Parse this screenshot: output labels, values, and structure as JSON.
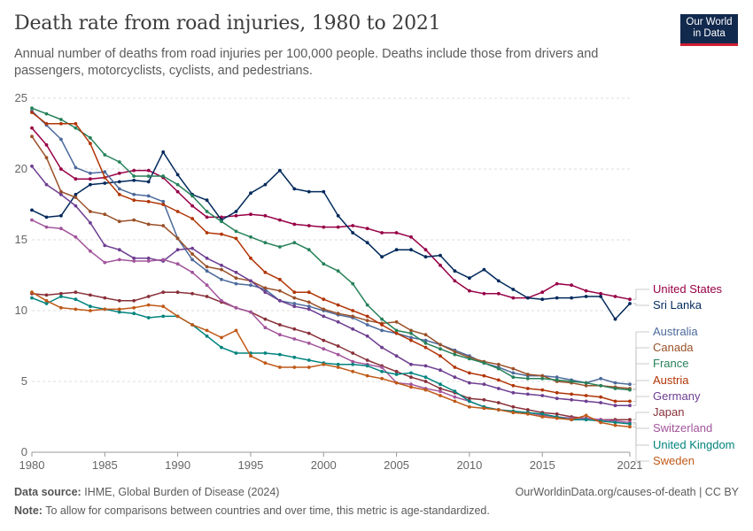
{
  "title": "Death rate from road injuries, 1980 to 2021",
  "subtitle": "Annual number of deaths from road injuries per 100,000 people. Deaths include those from drivers and passengers, motorcyclists, cyclists, and pedestrians.",
  "logo": {
    "line1": "Our World",
    "line2": "in Data"
  },
  "footer": {
    "source_label": "Data source:",
    "source_text": "IHME, Global Burden of Disease (2024)",
    "url": "OurWorldinData.org/causes-of-death | CC BY",
    "note_label": "Note:",
    "note_text": "To allow for comparisons between countries and over time, this metric is age-standardized."
  },
  "chart_data": {
    "type": "line",
    "title": "Death rate from road injuries, 1980 to 2021",
    "xlabel": "",
    "ylabel": "",
    "xlim": [
      1980,
      2021
    ],
    "ylim": [
      0,
      25
    ],
    "x_ticks": [
      "1980",
      "1985",
      "1990",
      "1995",
      "2000",
      "2005",
      "2010",
      "2015",
      "2021"
    ],
    "y_ticks": [
      "0",
      "5",
      "10",
      "15",
      "20",
      "25"
    ],
    "grid": "horizontal",
    "legend": "right",
    "x": [
      1980,
      1981,
      1982,
      1983,
      1984,
      1985,
      1986,
      1987,
      1988,
      1989,
      1990,
      1991,
      1992,
      1993,
      1994,
      1995,
      1996,
      1997,
      1998,
      1999,
      2000,
      2001,
      2002,
      2003,
      2004,
      2005,
      2006,
      2007,
      2008,
      2009,
      2010,
      2011,
      2012,
      2013,
      2014,
      2015,
      2016,
      2017,
      2018,
      2019,
      2020,
      2021
    ],
    "series": [
      {
        "name": "United States",
        "color": "#970046",
        "values": [
          22.9,
          21.7,
          20.0,
          19.3,
          19.3,
          19.4,
          19.7,
          19.9,
          19.9,
          19.4,
          18.4,
          17.4,
          16.6,
          16.6,
          16.7,
          16.8,
          16.7,
          16.4,
          16.1,
          16.0,
          15.9,
          15.9,
          16.0,
          15.8,
          15.5,
          15.5,
          15.2,
          14.3,
          13.2,
          12.1,
          11.4,
          11.2,
          11.2,
          10.9,
          10.9,
          11.3,
          11.9,
          11.8,
          11.4,
          11.2,
          11.0,
          10.8
        ]
      },
      {
        "name": "Sri Lanka",
        "color": "#00295b",
        "values": [
          17.1,
          16.6,
          16.7,
          18.2,
          18.9,
          19.0,
          19.1,
          19.2,
          19.1,
          21.2,
          19.6,
          18.2,
          17.8,
          16.4,
          17.0,
          18.3,
          18.9,
          19.9,
          18.6,
          18.4,
          18.4,
          16.7,
          15.5,
          14.8,
          13.8,
          14.3,
          14.3,
          13.8,
          13.9,
          12.8,
          12.3,
          12.9,
          12.1,
          11.5,
          10.9,
          10.8,
          10.9,
          10.9,
          11.0,
          11.0,
          9.4,
          10.5
        ]
      },
      {
        "name": "Australia",
        "color": "#4c6a9c",
        "values": [
          24.1,
          23.1,
          22.1,
          20.1,
          19.7,
          19.8,
          18.6,
          18.2,
          18.1,
          17.7,
          15.1,
          13.6,
          12.8,
          12.2,
          11.9,
          11.8,
          11.5,
          10.7,
          10.5,
          10.3,
          10.0,
          9.7,
          9.5,
          9.0,
          8.6,
          8.4,
          8.1,
          7.9,
          7.6,
          7.2,
          6.8,
          6.3,
          6.0,
          5.6,
          5.4,
          5.4,
          5.3,
          5.1,
          4.9,
          5.2,
          4.9,
          4.8
        ]
      },
      {
        "name": "Canada",
        "color": "#9a5129",
        "values": [
          22.3,
          20.8,
          18.4,
          18.0,
          17.0,
          16.8,
          16.3,
          16.4,
          16.1,
          16.0,
          15.1,
          14.0,
          13.1,
          12.9,
          12.3,
          12.1,
          11.6,
          11.4,
          10.9,
          10.6,
          10.1,
          9.8,
          9.6,
          9.3,
          9.1,
          9.2,
          8.6,
          8.3,
          7.6,
          7.1,
          6.7,
          6.4,
          6.2,
          5.9,
          5.5,
          5.4,
          5.0,
          4.9,
          4.7,
          4.7,
          4.6,
          4.5
        ]
      },
      {
        "name": "France",
        "color": "#26815a",
        "values": [
          24.3,
          23.9,
          23.5,
          22.9,
          22.2,
          21.0,
          20.5,
          19.5,
          19.5,
          19.5,
          18.9,
          18.1,
          17.0,
          16.3,
          15.6,
          15.2,
          14.8,
          14.5,
          14.8,
          14.3,
          13.3,
          12.8,
          11.9,
          10.4,
          9.4,
          8.6,
          8.4,
          7.7,
          7.3,
          6.9,
          6.6,
          6.3,
          5.9,
          5.3,
          5.2,
          5.2,
          5.1,
          5.0,
          4.9,
          4.7,
          4.5,
          4.4
        ]
      },
      {
        "name": "Austria",
        "color": "#b13507",
        "values": [
          24.0,
          23.2,
          23.2,
          23.2,
          21.8,
          19.4,
          18.2,
          17.8,
          17.7,
          17.5,
          17.0,
          16.5,
          15.5,
          15.4,
          15.1,
          13.7,
          12.7,
          12.2,
          11.3,
          11.3,
          10.8,
          10.4,
          10.0,
          9.6,
          9.0,
          8.4,
          7.9,
          7.4,
          6.8,
          6.0,
          5.6,
          5.4,
          5.1,
          4.7,
          4.5,
          4.4,
          4.2,
          4.1,
          4.0,
          3.9,
          3.6,
          3.6
        ]
      },
      {
        "name": "Germany",
        "color": "#6d3e91",
        "values": [
          20.2,
          18.9,
          18.2,
          17.4,
          16.2,
          14.6,
          14.3,
          13.7,
          13.7,
          13.5,
          14.3,
          14.4,
          13.7,
          13.2,
          12.7,
          12.1,
          11.3,
          10.7,
          10.3,
          10.1,
          9.6,
          9.2,
          8.7,
          8.2,
          7.4,
          6.8,
          6.2,
          6.1,
          5.8,
          5.3,
          4.9,
          4.8,
          4.5,
          4.2,
          4.1,
          4.0,
          3.8,
          3.7,
          3.6,
          3.5,
          3.3,
          3.3
        ]
      },
      {
        "name": "Japan",
        "color": "#883039",
        "values": [
          11.2,
          11.1,
          11.2,
          11.3,
          11.1,
          10.9,
          10.7,
          10.7,
          11.0,
          11.3,
          11.3,
          11.2,
          11.0,
          10.6,
          10.2,
          9.9,
          9.4,
          9.0,
          8.7,
          8.4,
          7.9,
          7.5,
          7.0,
          6.5,
          6.1,
          5.7,
          5.3,
          5.0,
          4.5,
          4.2,
          3.8,
          3.7,
          3.5,
          3.2,
          3.0,
          2.8,
          2.7,
          2.5,
          2.4,
          2.3,
          2.3,
          2.3
        ]
      },
      {
        "name": "Switzerland",
        "color": "#a2559c",
        "values": [
          16.4,
          15.9,
          15.8,
          15.2,
          14.2,
          13.4,
          13.6,
          13.5,
          13.5,
          13.6,
          13.3,
          12.7,
          11.8,
          10.7,
          10.2,
          9.9,
          8.8,
          8.3,
          8.0,
          7.7,
          7.3,
          6.9,
          6.4,
          6.2,
          6.0,
          4.9,
          4.8,
          4.5,
          4.3,
          3.9,
          3.6,
          3.2,
          3.0,
          2.9,
          2.8,
          2.6,
          2.5,
          2.4,
          2.4,
          2.3,
          2.2,
          2.1
        ]
      },
      {
        "name": "United Kingdom",
        "color": "#00847e",
        "values": [
          10.9,
          10.5,
          11.0,
          10.8,
          10.3,
          10.1,
          9.9,
          9.8,
          9.5,
          9.6,
          9.6,
          9.0,
          8.2,
          7.4,
          7.0,
          7.0,
          7.0,
          6.9,
          6.7,
          6.5,
          6.3,
          6.2,
          6.2,
          6.1,
          5.7,
          5.5,
          5.6,
          5.3,
          4.8,
          4.3,
          3.6,
          3.2,
          3.0,
          2.9,
          2.8,
          2.7,
          2.5,
          2.3,
          2.3,
          2.2,
          2.1,
          2.0
        ]
      },
      {
        "name": "Sweden",
        "color": "#c05917",
        "values": [
          11.3,
          10.7,
          10.2,
          10.1,
          10.0,
          10.1,
          10.1,
          10.2,
          10.4,
          10.3,
          9.6,
          9.0,
          8.6,
          8.1,
          8.6,
          6.8,
          6.3,
          6.0,
          6.0,
          6.0,
          6.2,
          6.0,
          5.7,
          5.4,
          5.2,
          4.9,
          4.6,
          4.4,
          4.0,
          3.6,
          3.2,
          3.1,
          3.0,
          2.8,
          2.7,
          2.5,
          2.4,
          2.3,
          2.6,
          2.1,
          1.9,
          1.8
        ]
      }
    ]
  }
}
